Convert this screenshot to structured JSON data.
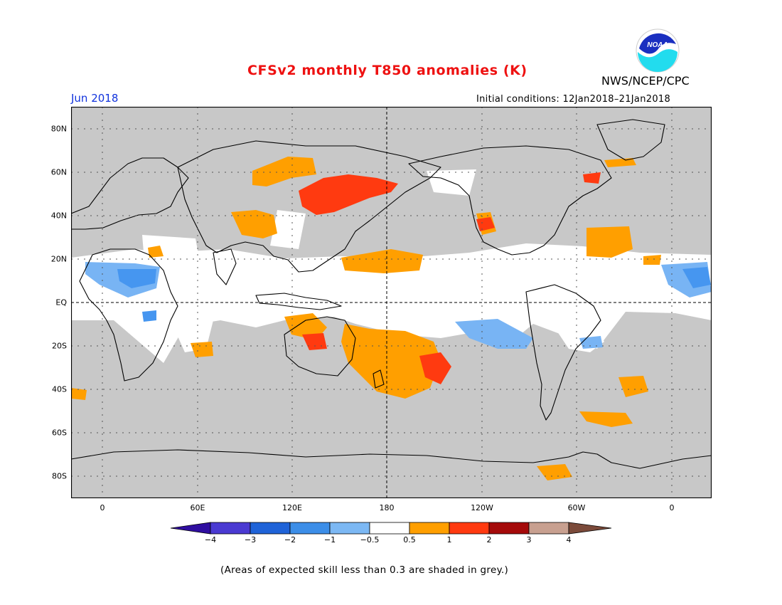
{
  "header": {
    "title": "CFSv2 monthly T850 anomalies (K)",
    "period": "Jun 2018",
    "agency": "NWS/NCEP/CPC",
    "initial_conditions": "Initial conditions: 12Jan2018–21Jan2018",
    "logo_text": "NOAA"
  },
  "map": {
    "lon_labels": [
      "0",
      "60E",
      "120E",
      "180",
      "120W",
      "60W",
      "0"
    ],
    "lat_labels": [
      "80N",
      "60N",
      "40N",
      "20N",
      "EQ",
      "20S",
      "40S",
      "60S",
      "80S"
    ],
    "colors": {
      "grey_low_skill": "#c8c8c8",
      "neutral": "#ffffff",
      "anom_pos_05_1": "#ff9f00",
      "anom_pos_1_2": "#ff3a10",
      "anom_neg_05_1": "#78b4f4",
      "anom_neg_1_2": "#4696f0",
      "anom_neg_2_3": "#2c6ee0"
    }
  },
  "colorbar": {
    "labels": [
      "−4",
      "−3",
      "−2",
      "−1",
      "−0.5",
      "0.5",
      "1",
      "2",
      "3",
      "4"
    ],
    "colors": [
      "#2f0ea0",
      "#4a3ad2",
      "#1f63d8",
      "#3c8ee8",
      "#7cb8f4",
      "#ffffff",
      "#ff9f00",
      "#ff3a10",
      "#a50a0a",
      "#c8a090",
      "#7b4a3a"
    ]
  },
  "footnote": "(Areas of expected skill less than 0.3 are shaded in grey.)"
}
